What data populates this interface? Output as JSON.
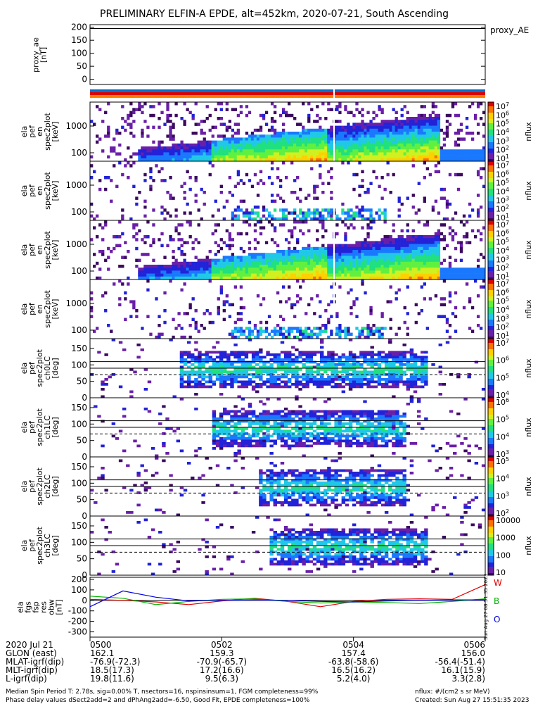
{
  "title": "PRELIMINARY ELFIN-A EPDE, alt=452km, 2020-07-21, South Ascending",
  "proxy_ae": {
    "ylabel": [
      "proxy_ae",
      "[nT]"
    ],
    "yticks": [
      "200",
      "150",
      "100",
      "50",
      "0"
    ],
    "ytick_values": [
      200,
      150,
      100,
      50,
      0
    ],
    "ylim": [
      -20,
      210
    ],
    "legend": "proxy_AE"
  },
  "status_bar": {
    "colors": [
      "#e00000",
      "#ff8000",
      "#0070d0"
    ]
  },
  "energy_panels": [
    {
      "ylabel": [
        "ela",
        "pef",
        "en",
        "spec2plot",
        "[keV]"
      ],
      "yticks": [
        "1000",
        "100"
      ]
    },
    {
      "ylabel": [
        "ela",
        "pef",
        "en",
        "spec2plot",
        "[keV]"
      ],
      "yticks": [
        "1000",
        "100"
      ]
    },
    {
      "ylabel": [
        "ela",
        "pef",
        "en",
        "spec2plot",
        "[keV]"
      ],
      "yticks": [
        "1000",
        "100"
      ]
    },
    {
      "ylabel": [
        "ela",
        "pef",
        "en",
        "spec2plot",
        "[keV]"
      ],
      "yticks": [
        "1000",
        "100"
      ]
    }
  ],
  "pitch_panels": [
    {
      "ylabel": [
        "ela",
        "pef",
        "spec2plot",
        "ch0LC",
        "[deg]"
      ],
      "yticks": [
        "150",
        "100",
        "50",
        "0"
      ]
    },
    {
      "ylabel": [
        "ela",
        "pef",
        "spec2plot",
        "ch1LC",
        "[deg]"
      ],
      "yticks": [
        "150",
        "100",
        "50",
        "0"
      ]
    },
    {
      "ylabel": [
        "ela",
        "pef",
        "spec2plot",
        "ch2LC",
        "[deg]"
      ],
      "yticks": [
        "150",
        "100",
        "50",
        "0"
      ]
    },
    {
      "ylabel": [
        "ela",
        "pef",
        "spec2plot",
        "ch3LC",
        "[deg]"
      ],
      "yticks": [
        "150",
        "100",
        "50",
        "0"
      ]
    }
  ],
  "colorbars": [
    {
      "label": "nflux",
      "ticks": [
        "10^7",
        "10^6",
        "10^5",
        "10^4",
        "10^3",
        "10^2",
        "10^1"
      ]
    },
    {
      "label": "nflux",
      "ticks": [
        "10^7",
        "10^6",
        "10^5",
        "10^4",
        "10^3",
        "10^2",
        "10^1"
      ]
    },
    {
      "label": "nflux",
      "ticks": [
        "10^7",
        "10^6",
        "10^5",
        "10^4",
        "10^3",
        "10^2",
        "10^1"
      ]
    },
    {
      "label": "nflux",
      "ticks": [
        "10^7",
        "10^6",
        "10^5",
        "10^4",
        "10^3",
        "10^2",
        "10^1"
      ]
    },
    {
      "label": "nflux",
      "ticks": [
        "10^7",
        "10^6",
        "10^5",
        "10^4"
      ]
    },
    {
      "label": "nflux",
      "ticks": [
        "10^6",
        "10^5",
        "10^4",
        "10^3"
      ]
    },
    {
      "label": "nflux",
      "ticks": [
        "10^5",
        "10^4",
        "10^3",
        "10^2"
      ]
    },
    {
      "label": "nflux",
      "ticks": [
        "10000",
        "1000",
        "100",
        "10"
      ]
    }
  ],
  "field_panel": {
    "ylabel": [
      "ela",
      "fgs",
      "fsp",
      "res",
      "obw",
      "[nT]"
    ],
    "yticks": [
      "200",
      "100",
      "0",
      "-100",
      "-200",
      "-300"
    ],
    "ytick_values": [
      200,
      100,
      0,
      -100,
      -200,
      -300
    ],
    "ylim": [
      -350,
      220
    ],
    "legend": [
      "W",
      "B",
      "O"
    ],
    "legend_colors": [
      "#e00000",
      "#00b000",
      "#0000e0"
    ],
    "side_text": "Sun Aug 27 08:51:35 2023"
  },
  "chart_data": {
    "type": "line",
    "title": "PRELIMINARY ELFIN-A EPDE, alt=452km, 2020-07-21, South Ascending",
    "x_range": [
      "05:00",
      "05:06"
    ],
    "note": "",
    "series": [
      {
        "name": "W",
        "color": "#e00000",
        "x": [
          "05:00",
          "05:00:30",
          "05:01",
          "05:01:30",
          "05:02",
          "05:02:30",
          "05:03",
          "05:03:30",
          "05:04",
          "05:04:30",
          "05:05",
          "05:05:30",
          "05:06"
        ],
        "values": [
          10,
          0,
          -15,
          -40,
          -5,
          20,
          -10,
          -60,
          -10,
          10,
          15,
          10,
          150
        ]
      },
      {
        "name": "B",
        "color": "#00b000",
        "x": [
          "05:00",
          "05:00:30",
          "05:01",
          "05:01:30",
          "05:02",
          "05:02:30",
          "05:03",
          "05:03:30",
          "05:04",
          "05:04:30",
          "05:05",
          "05:05:30",
          "05:06"
        ],
        "values": [
          40,
          20,
          -40,
          -10,
          10,
          15,
          -10,
          -25,
          -15,
          -20,
          -30,
          -10,
          15
        ]
      },
      {
        "name": "O",
        "color": "#0000e0",
        "x": [
          "05:00",
          "05:00:30",
          "05:01",
          "05:01:30",
          "05:02",
          "05:02:30",
          "05:03",
          "05:03:30",
          "05:04",
          "05:04:30",
          "05:05",
          "05:05:30",
          "05:06"
        ],
        "values": [
          -60,
          90,
          30,
          -5,
          0,
          5,
          0,
          -10,
          -15,
          -5,
          0,
          5,
          5
        ]
      }
    ]
  },
  "orbit_table": {
    "rows": [
      {
        "label": "2020 Jul 21",
        "values": [
          "0500",
          "0502",
          "0504",
          "0506"
        ]
      },
      {
        "label": "GLON (east)",
        "values": [
          "162.1",
          "159.3",
          "157.4",
          "156.0"
        ]
      },
      {
        "label": "MLAT-igrf(dip)",
        "values": [
          "-76.9(-72.3)",
          "-70.9(-65.7)",
          "-63.8(-58.6)",
          "-56.4(-51.4)"
        ]
      },
      {
        "label": "MLT-igrf(dip)",
        "values": [
          "18.5(17.3)",
          "17.2(16.6)",
          "16.5(16.2)",
          "16.1(15.9)"
        ]
      },
      {
        "label": "L-igrf(dip)",
        "values": [
          "19.8(11.6)",
          "9.5(6.3)",
          "5.2(4.0)",
          "3.3(2.8)"
        ]
      }
    ]
  },
  "footer": {
    "left1": "Median Spin Period T: 2.78s, sig=0.00% T, nsectors=16, nspinsinsum=1, FGM completeness=99%",
    "left2": "Phase delay values dSect2add=2 and dPhAng2add=-6.50, Good Fit, EPDE completeness=100%",
    "right1": "nflux: #/(cm2 s sr MeV)",
    "right2": "Created: Sun Aug 27 15:51:35 2023"
  }
}
